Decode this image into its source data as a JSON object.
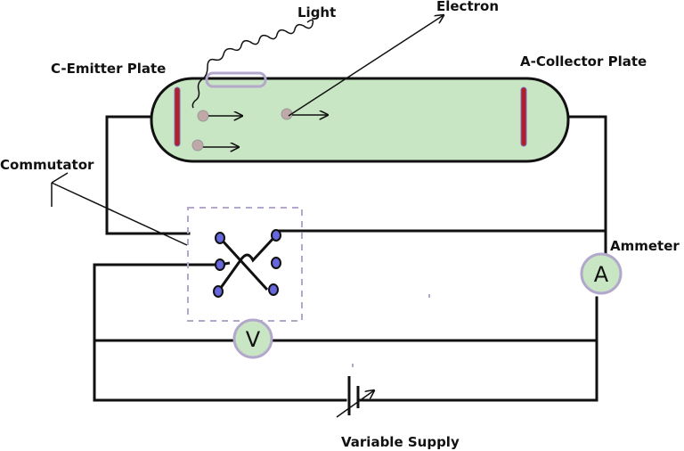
{
  "labels": {
    "light": "Light",
    "electron": "Electron",
    "emitter": "C-Emitter Plate",
    "collector": "A-Collector Plate",
    "commutator": "Commutator",
    "ammeter": "Ammeter",
    "supply": "Variable Supply"
  },
  "meters": {
    "ammeter_symbol": "A",
    "voltmeter_symbol": "V"
  },
  "colors": {
    "tube_fill": "#c8e6c3",
    "plate": "#b01f2a",
    "plate_edge": "#7a6fb8",
    "terminal": "#6666dd",
    "meter_fill": "#c8e6c3",
    "meter_ring": "#b3a8cc",
    "electron": "#c0a8a8"
  }
}
